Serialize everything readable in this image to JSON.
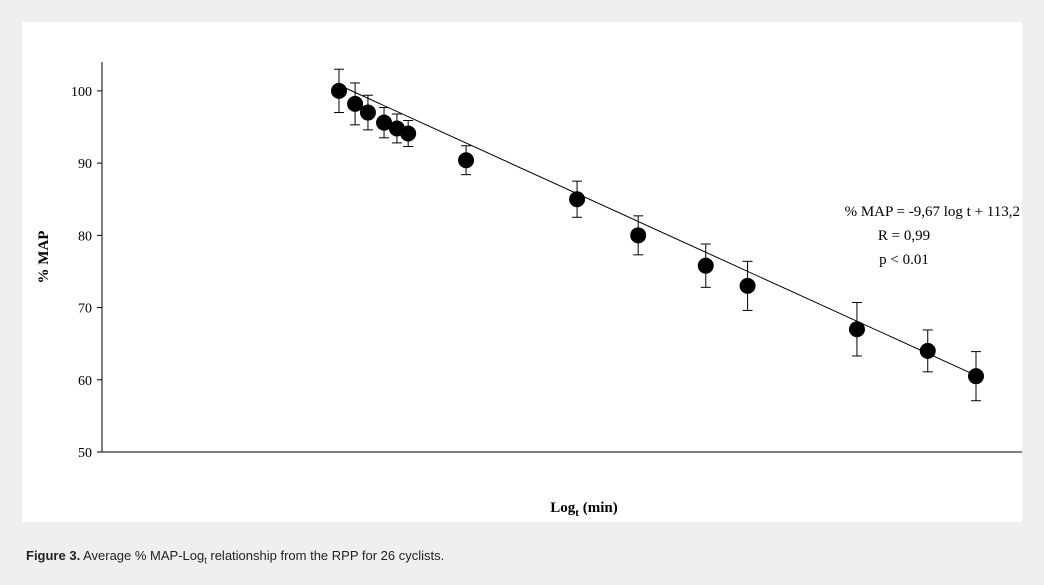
{
  "chart_data": {
    "type": "scatter",
    "ylabel": "% MAP",
    "xlabel_main": "Log",
    "xlabel_sub": "t",
    "xlabel_unit": "(min)",
    "ylim": [
      50,
      104
    ],
    "yticks": [
      50,
      60,
      70,
      80,
      90,
      100
    ],
    "grid": false,
    "x_ticks_shown": false,
    "points": [
      {
        "x": 0.0,
        "y": 100.0,
        "err": 3.0
      },
      {
        "x": 0.1,
        "y": 98.2,
        "err": 2.9
      },
      {
        "x": 0.18,
        "y": 97.0,
        "err": 2.4
      },
      {
        "x": 0.28,
        "y": 95.6,
        "err": 2.1
      },
      {
        "x": 0.36,
        "y": 94.8,
        "err": 2.0
      },
      {
        "x": 0.43,
        "y": 94.1,
        "err": 1.8
      },
      {
        "x": 0.79,
        "y": 90.4,
        "err": 2.0
      },
      {
        "x": 1.48,
        "y": 85.0,
        "err": 2.5
      },
      {
        "x": 1.86,
        "y": 80.0,
        "err": 2.7
      },
      {
        "x": 2.28,
        "y": 75.8,
        "err": 3.0
      },
      {
        "x": 2.54,
        "y": 73.0,
        "err": 3.4
      },
      {
        "x": 3.22,
        "y": 67.0,
        "err": 3.7
      },
      {
        "x": 3.66,
        "y": 64.0,
        "err": 2.9
      },
      {
        "x": 3.96,
        "y": 60.5,
        "err": 3.4
      }
    ],
    "fit_line": {
      "x_start": 0.0,
      "y_start": 100.8,
      "x_end": 3.96,
      "y_end": 60.6
    },
    "annotations": [
      "% MAP = -9,67  log t + 113,2",
      "R = 0,99",
      "p < 0.01"
    ]
  },
  "caption": {
    "label": "Figure 3.",
    "text_before": " Average % MAP-Log",
    "text_sub": "t",
    "text_after": " relationship from the RPP for 26 cyclists."
  }
}
